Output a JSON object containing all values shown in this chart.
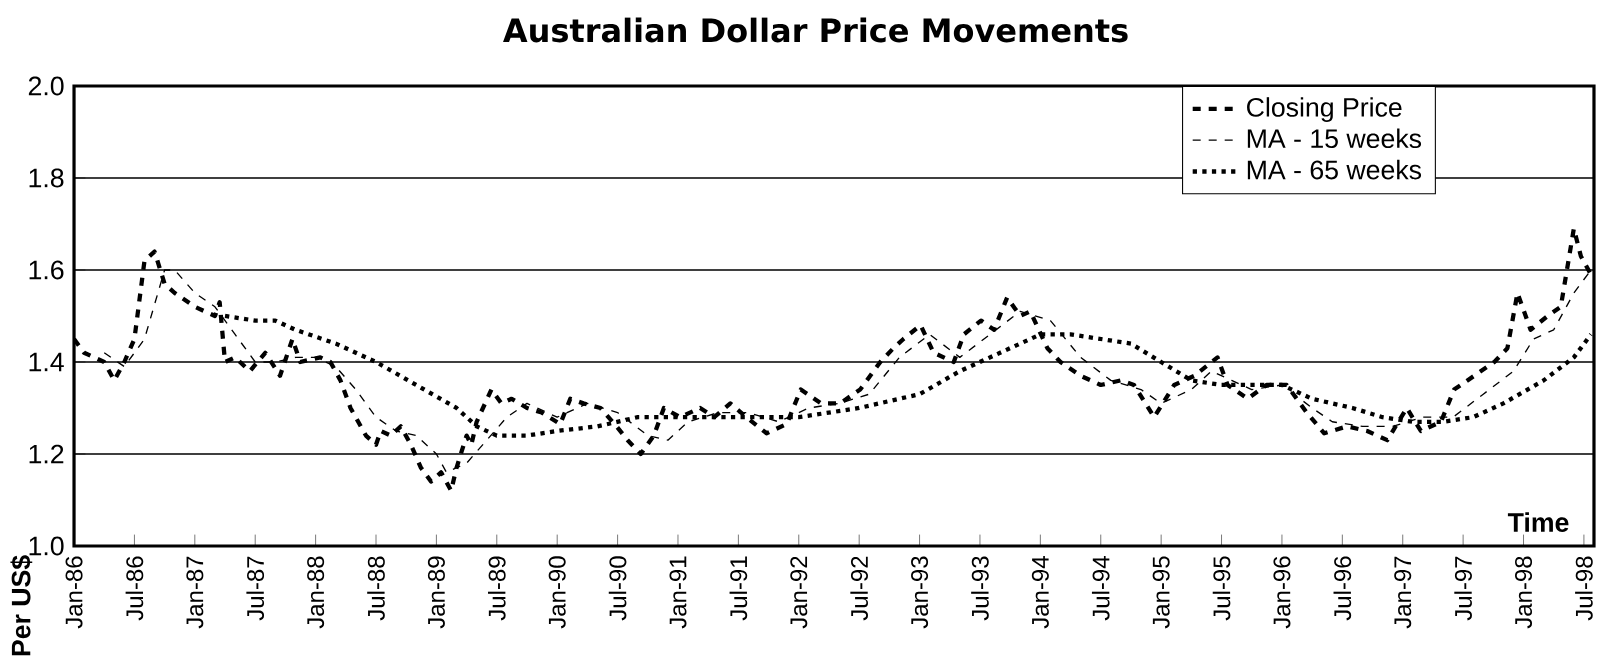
{
  "chart_data": {
    "type": "line",
    "title": "Australian Dollar Price Movements",
    "xlabel": "Time",
    "ylabel": "Per US$",
    "xlim": [
      "1986-01",
      "1998-08"
    ],
    "ylim": [
      1.0,
      2.0
    ],
    "yticks": [
      {
        "value": 1.0,
        "label": "1.0"
      },
      1.2,
      1.4,
      1.6,
      1.8,
      {
        "value": 2.0,
        "label": "2.0"
      }
    ],
    "xticks": [
      {
        "value": "1986-01",
        "label": "Jan-86"
      },
      {
        "value": "1986-07",
        "label": "Jul-86"
      },
      {
        "value": "1987-01",
        "label": "Jan-87"
      },
      {
        "value": "1987-07",
        "label": "Jul-87"
      },
      {
        "value": "1988-01",
        "label": "Jan-88"
      },
      {
        "value": "1988-07",
        "label": "Jul-88"
      },
      {
        "value": "1989-01",
        "label": "Jan-89"
      },
      {
        "value": "1989-07",
        "label": "Jul-89"
      },
      {
        "value": "1990-01",
        "label": "Jan-90"
      },
      {
        "value": "1990-07",
        "label": "Jul-90"
      },
      {
        "value": "1991-01",
        "label": "Jan-91"
      },
      {
        "value": "1991-07",
        "label": "Jul-91"
      },
      {
        "value": "1992-01",
        "label": "Jan-92"
      },
      {
        "value": "1992-07",
        "label": "Jul-92"
      },
      {
        "value": "1993-01",
        "label": "Jan-93"
      },
      {
        "value": "1993-07",
        "label": "Jul-93"
      },
      {
        "value": "1994-01",
        "label": "Jan-94"
      },
      {
        "value": "1994-07",
        "label": "Jul-94"
      },
      {
        "value": "1995-01",
        "label": "Jan-95"
      },
      {
        "value": "1995-07",
        "label": "Jul-95"
      },
      {
        "value": "1996-01",
        "label": "Jan-96"
      },
      {
        "value": "1996-07",
        "label": "Jul-96"
      },
      {
        "value": "1997-01",
        "label": "Jan-97"
      },
      {
        "value": "1997-07",
        "label": "Jul-97"
      },
      {
        "value": "1998-01",
        "label": "Jan-98"
      },
      {
        "value": "1998-07",
        "label": "Jul-98"
      }
    ],
    "grid": "y",
    "legend": "top right",
    "series": [
      {
        "name": "Closing Price",
        "color": "#000000",
        "line_style": "dashed",
        "x": [
          "1986-01-01",
          "1986-02-01",
          "1986-03-01",
          "1986-04-01",
          "1986-05-01",
          "1986-06-01",
          "1986-07-01",
          "1986-08-01",
          "1986-09-01",
          "1986-10-01",
          "1986-11-01",
          "1987-01-01",
          "1987-03-01",
          "1987-03-15",
          "1987-04-01",
          "1987-05-01",
          "1987-06-15",
          "1987-08-01",
          "1987-09-15",
          "1987-10-22",
          "1987-11-15",
          "1988-01-15",
          "1988-02-15",
          "1988-03-15",
          "1988-04-15",
          "1988-06-01",
          "1988-07-01",
          "1988-07-15",
          "1988-08-15",
          "1988-09-15",
          "1988-10-15",
          "1988-11-15",
          "1988-12-15",
          "1989-01-15",
          "1989-02-15",
          "1989-03-01",
          "1989-04-01",
          "1989-04-15",
          "1989-05-01",
          "1989-06-15",
          "1989-07-15",
          "1989-08-15",
          "1989-10-01",
          "1989-11-15",
          "1990-01-10",
          "1990-02-10",
          "1990-03-19",
          "1990-05-10",
          "1990-06-28",
          "1990-08-01",
          "1990-09-10",
          "1990-10-19",
          "1990-11-19",
          "1991-01-07",
          "1991-03-07",
          "1991-04-19",
          "1991-06-07",
          "1991-07-25",
          "1991-09-25",
          "1991-11-25",
          "1992-01-07",
          "1992-03-07",
          "1992-05-04",
          "1992-07-04",
          "1992-09-04",
          "1992-10-13",
          "1992-11-13",
          "1993-01-04",
          "1993-02-13",
          "1993-04-13",
          "1993-05-13",
          "1993-07-04",
          "1993-08-13",
          "1993-09-22",
          "1993-11-01",
          "1993-12-01",
          "1994-01-22",
          "1994-03-01",
          "1994-05-01",
          "1994-07-01",
          "1994-09-01",
          "1994-10-10",
          "1994-12-10",
          "1995-02-10",
          "1995-04-10",
          "1995-06-19",
          "1995-07-19",
          "1995-09-19",
          "1995-11-15",
          "1996-01-15",
          "1996-03-15",
          "1996-05-07",
          "1996-07-15",
          "1996-09-15",
          "1996-11-15",
          "1997-01-13",
          "1997-02-25",
          "1997-04-25",
          "1997-06-04",
          "1997-08-04",
          "1997-10-04",
          "1997-11-13",
          "1997-12-13",
          "1998-01-22",
          "1998-03-13",
          "1998-04-22",
          "1998-06-01",
          "1998-06-22",
          "1998-07-22"
        ],
        "values": [
          1.45,
          1.42,
          1.41,
          1.4,
          1.36,
          1.4,
          1.45,
          1.62,
          1.64,
          1.57,
          1.55,
          1.52,
          1.5,
          1.53,
          1.4,
          1.41,
          1.38,
          1.42,
          1.37,
          1.45,
          1.4,
          1.41,
          1.4,
          1.36,
          1.3,
          1.24,
          1.22,
          1.25,
          1.24,
          1.26,
          1.22,
          1.17,
          1.14,
          1.16,
          1.12,
          1.17,
          1.24,
          1.22,
          1.27,
          1.34,
          1.31,
          1.32,
          1.3,
          1.29,
          1.265,
          1.32,
          1.31,
          1.3,
          1.26,
          1.23,
          1.2,
          1.24,
          1.3,
          1.28,
          1.3,
          1.28,
          1.31,
          1.28,
          1.245,
          1.265,
          1.34,
          1.31,
          1.31,
          1.34,
          1.4,
          1.43,
          1.45,
          1.48,
          1.42,
          1.4,
          1.46,
          1.49,
          1.47,
          1.54,
          1.5,
          1.51,
          1.43,
          1.4,
          1.37,
          1.35,
          1.36,
          1.35,
          1.28,
          1.35,
          1.37,
          1.41,
          1.35,
          1.32,
          1.35,
          1.35,
          1.29,
          1.245,
          1.26,
          1.25,
          1.23,
          1.3,
          1.25,
          1.27,
          1.34,
          1.37,
          1.4,
          1.43,
          1.55,
          1.47,
          1.5,
          1.52,
          1.69,
          1.63,
          1.59
        ]
      },
      {
        "name": "MA - 15 weeks",
        "color": "#000000",
        "line_style": "dashed",
        "x": [
          "1986-04",
          "1986-06",
          "1986-08",
          "1986-10",
          "1986-11",
          "1987-01",
          "1987-03",
          "1987-05",
          "1987-07",
          "1987-09",
          "1987-11",
          "1988-01",
          "1988-03",
          "1988-05",
          "1988-07",
          "1988-09",
          "1988-11",
          "1989-01",
          "1989-02",
          "1989-04",
          "1989-06",
          "1989-08",
          "1989-10",
          "1990-01",
          "1990-04",
          "1990-07",
          "1990-10",
          "1990-12",
          "1991-02",
          "1991-05",
          "1991-08",
          "1991-11",
          "1992-02",
          "1992-05",
          "1992-08",
          "1992-11",
          "1993-02",
          "1993-05",
          "1993-08",
          "1993-11",
          "1994-02",
          "1994-05",
          "1994-08",
          "1994-11",
          "1995-01",
          "1995-04",
          "1995-06",
          "1995-08",
          "1995-10",
          "1996-01",
          "1996-04",
          "1996-06",
          "1996-09",
          "1996-12",
          "1997-03",
          "1997-06",
          "1997-09",
          "1997-12",
          "1998-02",
          "1998-04",
          "1998-06",
          "1998-07-22"
        ],
        "values": [
          1.42,
          1.39,
          1.45,
          1.6,
          1.6,
          1.55,
          1.52,
          1.46,
          1.4,
          1.4,
          1.41,
          1.41,
          1.39,
          1.34,
          1.28,
          1.25,
          1.24,
          1.2,
          1.16,
          1.18,
          1.23,
          1.28,
          1.31,
          1.28,
          1.31,
          1.29,
          1.24,
          1.23,
          1.27,
          1.29,
          1.29,
          1.27,
          1.3,
          1.31,
          1.33,
          1.41,
          1.46,
          1.41,
          1.46,
          1.51,
          1.49,
          1.41,
          1.36,
          1.34,
          1.31,
          1.34,
          1.38,
          1.36,
          1.34,
          1.35,
          1.3,
          1.27,
          1.26,
          1.26,
          1.28,
          1.28,
          1.33,
          1.38,
          1.45,
          1.47,
          1.55,
          1.6
        ]
      },
      {
        "name": "MA - 65 weeks",
        "color": "#000000",
        "line_style": "dotted",
        "x": [
          "1987-04",
          "1987-07",
          "1987-09",
          "1987-11",
          "1988-03",
          "1988-07",
          "1988-11",
          "1989-03",
          "1989-05",
          "1989-07",
          "1989-10",
          "1990-01",
          "1990-05",
          "1990-09",
          "1991-01",
          "1991-07",
          "1992-01",
          "1992-07",
          "1993-01",
          "1993-05",
          "1993-09",
          "1994-01",
          "1994-04",
          "1994-07",
          "1994-10",
          "1995-01",
          "1995-04",
          "1995-07",
          "1995-10",
          "1996-01",
          "1996-04",
          "1996-08",
          "1996-11",
          "1997-02",
          "1997-05",
          "1997-08",
          "1997-11",
          "1998-03",
          "1998-06",
          "1998-07-22"
        ],
        "values": [
          1.5,
          1.49,
          1.49,
          1.47,
          1.44,
          1.4,
          1.35,
          1.3,
          1.26,
          1.24,
          1.24,
          1.25,
          1.26,
          1.28,
          1.28,
          1.28,
          1.28,
          1.3,
          1.33,
          1.38,
          1.42,
          1.46,
          1.46,
          1.45,
          1.44,
          1.4,
          1.36,
          1.35,
          1.35,
          1.35,
          1.32,
          1.3,
          1.28,
          1.27,
          1.27,
          1.28,
          1.31,
          1.36,
          1.41,
          1.46
        ]
      }
    ]
  }
}
